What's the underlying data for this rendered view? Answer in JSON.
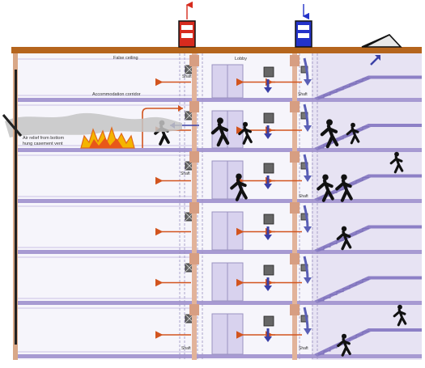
{
  "labels": {
    "upper_ceiling": "False ceiling",
    "lobby": "Lobby",
    "accommodation_corridor": "Accommodation corridor",
    "air_relief_line1": "Air relief from bottom",
    "air_relief_line2": "hung casement vent",
    "shaft": "Shaft"
  },
  "colors": {
    "roof": "#b5651d",
    "floor_slab": "#a79ad2",
    "wall_pink": "#e8b49a",
    "corridor_fill": "#f1eff7",
    "stair_fill": "#dcd6ee",
    "airflow_arrow": "#d2541e",
    "pressurisation_arrow": "#3a3fa6",
    "smoke": "#bfbfbf",
    "fire": "#f4b400",
    "fan_red": "#d62b1e",
    "fan_blue": "#2433c9",
    "person": "#111111"
  },
  "icons": {
    "roof_exhaust_fan": "exhaust-fan-icon",
    "roof_supply_fan": "supply-fan-icon",
    "roof_vent": "roof-vent-icon",
    "fire": "fire-icon",
    "person": "running-person-icon",
    "elevator": "elevator-door-icon",
    "damper": "damper-icon"
  }
}
